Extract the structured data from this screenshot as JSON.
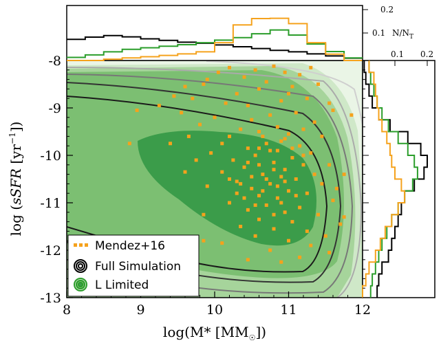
{
  "chart_data": {
    "type": "scatter",
    "xlabel_base": "log(M",
    "xlabel_star": "*",
    "xlabel_unit": " [M",
    "xlabel_tail": "])",
    "ylabel_base": "log (",
    "ylabel_var": "sSFR",
    "ylabel_unit": " [yr",
    "ylabel_exp": "−1",
    "ylabel_tail": "])",
    "xlim": [
      8,
      12
    ],
    "ylim": [
      -13,
      -8
    ],
    "x_ticks": [
      "8",
      "9",
      "10",
      "11",
      "12"
    ],
    "y_ticks": [
      "-8",
      "-9",
      "-10",
      "-11",
      "-12",
      "-13"
    ],
    "top_hist_ticks": [
      "0.2",
      "0.1"
    ],
    "top_hist_axis_label": "N/N",
    "top_hist_axis_sub": "T",
    "right_hist_ticks": [
      "0.1",
      "0.2"
    ],
    "legend": {
      "position": "lower-left",
      "entries": [
        {
          "label": "Mendez+16",
          "color": "#f5a21c",
          "marker": "square"
        },
        {
          "label": "Full Simulation",
          "color": "#000000",
          "marker": "contour"
        },
        {
          "label": "L Limited",
          "color": "#2a9d2a",
          "marker": "contour"
        }
      ]
    },
    "series": [
      {
        "name": "Mendez+16",
        "color": "#f5a21c",
        "points": [
          [
            10.05,
            -8.25
          ],
          [
            10.2,
            -8.15
          ],
          [
            10.55,
            -8.2
          ],
          [
            10.8,
            -8.12
          ],
          [
            10.95,
            -8.25
          ],
          [
            11.3,
            -8.15
          ],
          [
            11.15,
            -8.3
          ],
          [
            9.9,
            -8.4
          ],
          [
            10.4,
            -8.35
          ],
          [
            10.7,
            -8.45
          ],
          [
            9.6,
            -8.55
          ],
          [
            9.85,
            -8.5
          ],
          [
            10.6,
            -8.6
          ],
          [
            11.05,
            -8.55
          ],
          [
            11.4,
            -8.5
          ],
          [
            11.0,
            -8.7
          ],
          [
            10.3,
            -8.7
          ],
          [
            9.45,
            -8.75
          ],
          [
            9.7,
            -8.8
          ],
          [
            10.9,
            -8.85
          ],
          [
            11.25,
            -8.8
          ],
          [
            11.55,
            -8.9
          ],
          [
            10.15,
            -8.9
          ],
          [
            10.45,
            -8.95
          ],
          [
            11.6,
            -9.05
          ],
          [
            12.1,
            -9.1
          ],
          [
            12.05,
            -9.25
          ],
          [
            11.85,
            -9.15
          ],
          [
            9.25,
            -8.95
          ],
          [
            8.95,
            -9.05
          ],
          [
            9.55,
            -9.1
          ],
          [
            10.75,
            -9.15
          ],
          [
            11.1,
            -9.1
          ],
          [
            10.0,
            -9.2
          ],
          [
            10.5,
            -9.25
          ],
          [
            11.35,
            -9.3
          ],
          [
            9.8,
            -9.35
          ],
          [
            10.85,
            -9.4
          ],
          [
            11.2,
            -9.45
          ],
          [
            10.35,
            -9.45
          ],
          [
            10.6,
            -9.5
          ],
          [
            11.0,
            -9.55
          ],
          [
            9.65,
            -9.6
          ],
          [
            10.2,
            -9.6
          ],
          [
            10.95,
            -9.65
          ],
          [
            11.45,
            -9.6
          ],
          [
            8.85,
            -9.75
          ],
          [
            9.4,
            -9.75
          ],
          [
            10.1,
            -9.75
          ],
          [
            10.7,
            -9.75
          ],
          [
            11.15,
            -9.8
          ],
          [
            10.45,
            -9.85
          ],
          [
            10.85,
            -9.9
          ],
          [
            9.95,
            -9.95
          ],
          [
            11.3,
            -9.95
          ],
          [
            10.55,
            -10.0
          ],
          [
            11.05,
            -10.05
          ],
          [
            9.75,
            -10.1
          ],
          [
            10.25,
            -10.1
          ],
          [
            10.8,
            -10.15
          ],
          [
            11.2,
            -10.2
          ],
          [
            11.55,
            -10.2
          ],
          [
            10.4,
            -10.25
          ],
          [
            10.95,
            -10.3
          ],
          [
            9.6,
            -10.35
          ],
          [
            10.1,
            -10.35
          ],
          [
            10.65,
            -10.4
          ],
          [
            11.35,
            -10.4
          ],
          [
            10.9,
            -10.45
          ],
          [
            11.1,
            -10.5
          ],
          [
            10.3,
            -10.55
          ],
          [
            10.75,
            -10.6
          ],
          [
            11.45,
            -10.6
          ],
          [
            9.9,
            -10.65
          ],
          [
            10.5,
            -10.7
          ],
          [
            11.0,
            -10.75
          ],
          [
            11.25,
            -10.8
          ],
          [
            10.6,
            -10.85
          ],
          [
            10.85,
            -10.9
          ],
          [
            11.6,
            -10.95
          ],
          [
            10.2,
            -11.0
          ],
          [
            10.7,
            -11.05
          ],
          [
            11.15,
            -11.1
          ],
          [
            10.45,
            -11.15
          ],
          [
            10.95,
            -11.2
          ],
          [
            11.4,
            -11.25
          ],
          [
            9.85,
            -11.25
          ],
          [
            10.6,
            -11.35
          ],
          [
            11.05,
            -11.4
          ],
          [
            11.7,
            -11.45
          ],
          [
            10.35,
            -11.5
          ],
          [
            10.8,
            -11.55
          ],
          [
            11.25,
            -11.6
          ],
          [
            11.5,
            -11.7
          ],
          [
            10.55,
            -11.7
          ],
          [
            11.0,
            -11.8
          ],
          [
            10.1,
            -11.85
          ],
          [
            11.3,
            -11.9
          ],
          [
            10.75,
            -12.0
          ],
          [
            11.55,
            -12.05
          ],
          [
            9.75,
            -12.05
          ],
          [
            11.15,
            -12.15
          ],
          [
            10.45,
            -12.2
          ],
          [
            10.9,
            -12.25
          ],
          [
            9.85,
            -11.8
          ],
          [
            11.75,
            -11.3
          ],
          [
            11.65,
            -10.7
          ],
          [
            11.75,
            -10.4
          ],
          [
            10.65,
            -9.6
          ],
          [
            10.9,
            -9.7
          ],
          [
            10.75,
            -9.9
          ],
          [
            10.6,
            -10.2
          ],
          [
            10.7,
            -10.5
          ],
          [
            10.8,
            -10.3
          ],
          [
            10.5,
            -10.45
          ],
          [
            10.85,
            -10.65
          ],
          [
            10.95,
            -10.55
          ],
          [
            10.65,
            -10.75
          ],
          [
            10.4,
            -10.9
          ],
          [
            10.9,
            -11.0
          ],
          [
            11.1,
            -10.85
          ],
          [
            10.55,
            -11.05
          ],
          [
            10.8,
            -11.25
          ],
          [
            10.3,
            -10.8
          ],
          [
            10.2,
            -10.5
          ],
          [
            10.6,
            -9.85
          ],
          [
            10.45,
            -10.15
          ],
          [
            11.05,
            -9.85
          ],
          [
            11.2,
            -10.0
          ],
          [
            10.35,
            -10.6
          ]
        ]
      }
    ],
    "top_histograms": [
      {
        "name": "Full Simulation",
        "color": "#000000",
        "bin_edges": [
          8.0,
          8.25,
          8.5,
          8.75,
          9.0,
          9.25,
          9.5,
          9.75,
          10.0,
          10.25,
          10.5,
          10.75,
          11.0,
          11.25,
          11.5,
          11.75,
          12.0
        ],
        "values": [
          0.083,
          0.092,
          0.098,
          0.093,
          0.085,
          0.079,
          0.072,
          0.068,
          0.061,
          0.054,
          0.047,
          0.04,
          0.034,
          0.026,
          0.018,
          0.009
        ]
      },
      {
        "name": "L Limited",
        "color": "#2a9d2a",
        "bin_edges": [
          8.0,
          8.25,
          8.5,
          8.75,
          9.0,
          9.25,
          9.5,
          9.75,
          10.0,
          10.25,
          10.5,
          10.75,
          11.0,
          11.25,
          11.5,
          11.75,
          12.0
        ],
        "values": [
          0.012,
          0.022,
          0.034,
          0.044,
          0.05,
          0.056,
          0.062,
          0.07,
          0.08,
          0.09,
          0.105,
          0.12,
          0.1,
          0.065,
          0.035,
          0.01
        ]
      },
      {
        "name": "Mendez+16",
        "color": "#f5a21c",
        "bin_edges": [
          8.0,
          8.25,
          8.5,
          8.75,
          9.0,
          9.25,
          9.5,
          9.75,
          10.0,
          10.25,
          10.5,
          10.75,
          11.0,
          11.25,
          11.5,
          11.75,
          12.0
        ],
        "values": [
          0.0,
          0.0,
          0.005,
          0.01,
          0.015,
          0.02,
          0.026,
          0.034,
          0.07,
          0.14,
          0.165,
          0.166,
          0.145,
          0.07,
          0.025,
          0.0
        ]
      }
    ],
    "right_histograms": [
      {
        "name": "Full Simulation",
        "color": "#000000",
        "bin_edges": [
          -13.0,
          -12.75,
          -12.5,
          -12.25,
          -12.0,
          -11.75,
          -11.5,
          -11.25,
          -11.0,
          -10.75,
          -10.5,
          -10.25,
          -10.0,
          -9.75,
          -9.5,
          -9.25,
          -9.0,
          -8.75,
          -8.5,
          -8.25,
          -8.0
        ],
        "values": [
          0.045,
          0.05,
          0.06,
          0.08,
          0.09,
          0.1,
          0.11,
          0.12,
          0.13,
          0.16,
          0.19,
          0.2,
          0.18,
          0.14,
          0.085,
          0.05,
          0.03,
          0.02,
          0.01,
          0.005
        ]
      },
      {
        "name": "L Limited",
        "color": "#2a9d2a",
        "bin_edges": [
          -13.0,
          -12.75,
          -12.5,
          -12.25,
          -12.0,
          -11.75,
          -11.5,
          -11.25,
          -11.0,
          -10.75,
          -10.5,
          -10.25,
          -10.0,
          -9.75,
          -9.5,
          -9.25,
          -9.0,
          -8.75,
          -8.5,
          -8.25,
          -8.0
        ],
        "values": [
          0.025,
          0.03,
          0.04,
          0.05,
          0.06,
          0.075,
          0.09,
          0.11,
          0.13,
          0.155,
          0.17,
          0.16,
          0.14,
          0.11,
          0.08,
          0.06,
          0.045,
          0.035,
          0.025,
          0.02
        ]
      },
      {
        "name": "Mendez+16",
        "color": "#f5a21c",
        "bin_edges": [
          -13.0,
          -12.75,
          -12.5,
          -12.25,
          -12.0,
          -11.75,
          -11.5,
          -11.25,
          -11.0,
          -10.75,
          -10.5,
          -10.25,
          -10.0,
          -9.75,
          -9.5,
          -9.25,
          -9.0,
          -8.75,
          -8.5,
          -8.25,
          -8.0
        ],
        "values": [
          0.0,
          0.01,
          0.02,
          0.04,
          0.055,
          0.07,
          0.09,
          0.11,
          0.13,
          0.12,
          0.1,
          0.09,
          0.085,
          0.075,
          0.06,
          0.05,
          0.045,
          0.04,
          0.035,
          0.02
        ]
      }
    ]
  }
}
